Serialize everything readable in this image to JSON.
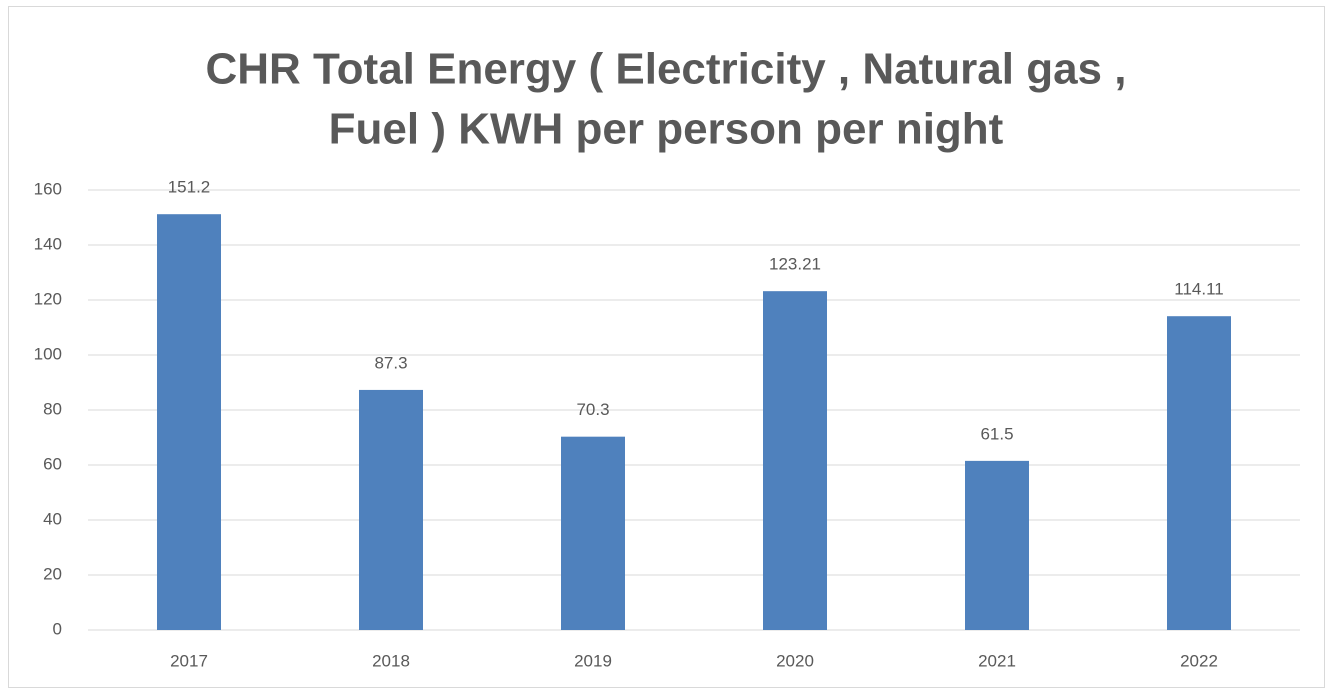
{
  "chart_data": {
    "type": "bar",
    "title": [
      "CHR Total Energy ( Electricity , Natural gas ,",
      "Fuel ) KWH per person per night"
    ],
    "categories": [
      "2017",
      "2018",
      "2019",
      "2020",
      "2021",
      "2022"
    ],
    "values": [
      151.2,
      87.3,
      70.3,
      123.21,
      61.5,
      114.11
    ],
    "color": "#4f81bd",
    "ylim": [
      0,
      160
    ],
    "yticks": [
      0,
      20,
      40,
      60,
      80,
      100,
      120,
      140,
      160
    ],
    "grid": true
  }
}
